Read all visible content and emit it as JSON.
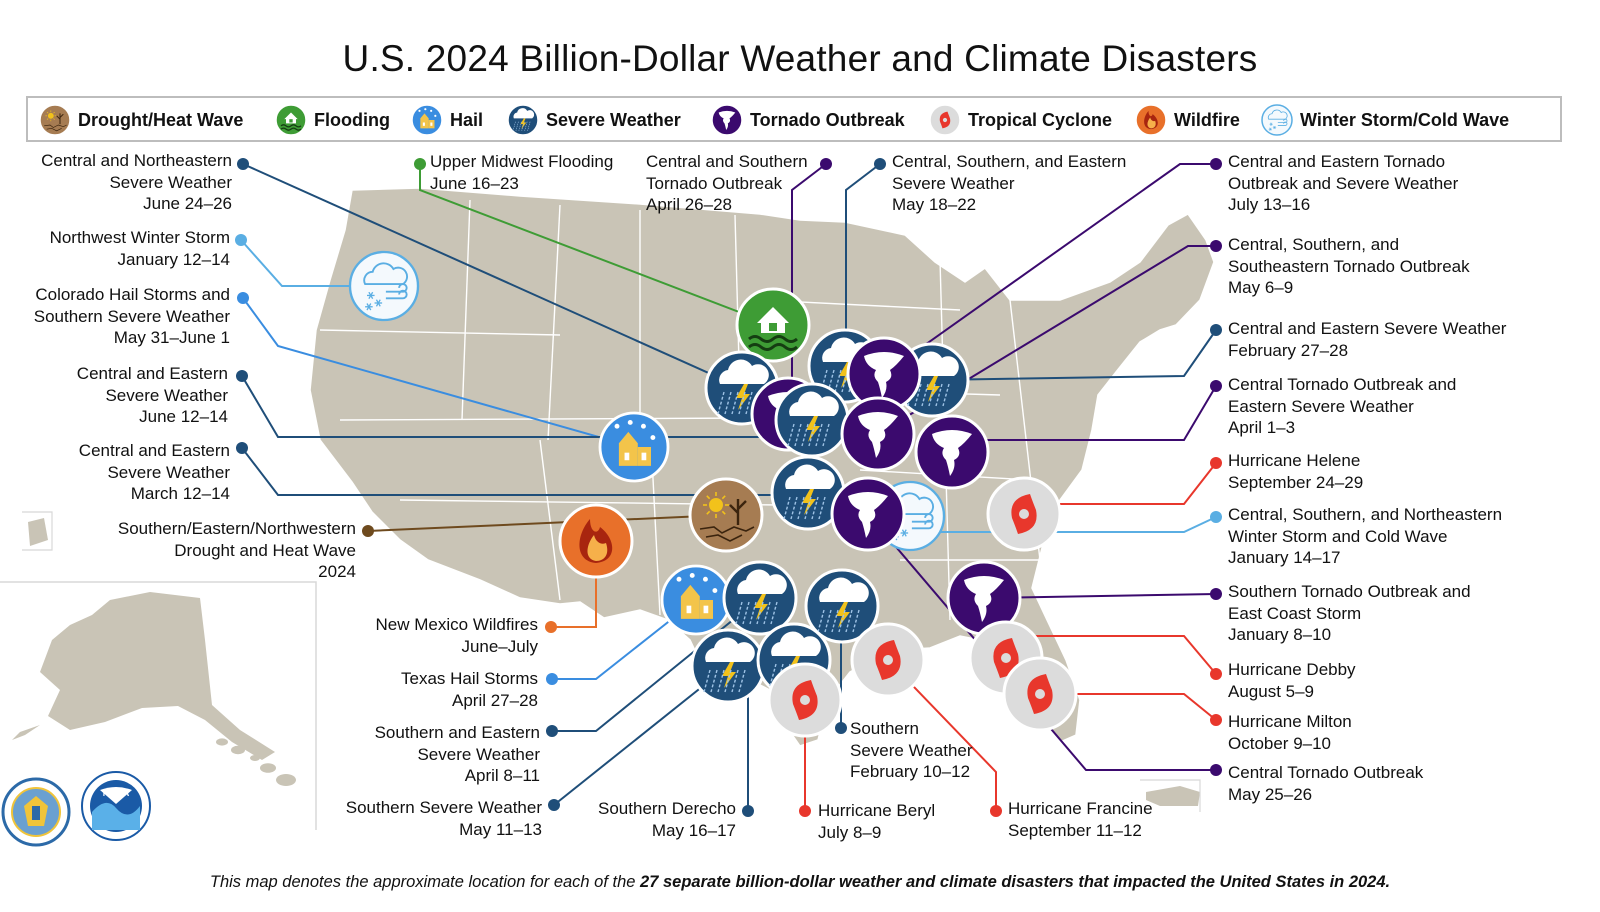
{
  "title": "U.S. 2024 Billion-Dollar Weather and Climate Disasters",
  "legend": [
    {
      "type": "drought",
      "label": "Drought/Heat Wave"
    },
    {
      "type": "flood",
      "label": "Flooding"
    },
    {
      "type": "hail",
      "label": "Hail"
    },
    {
      "type": "severe",
      "label": "Severe Weather"
    },
    {
      "type": "tornado",
      "label": "Tornado Outbreak"
    },
    {
      "type": "tropical",
      "label": "Tropical Cyclone"
    },
    {
      "type": "wildfire",
      "label": "Wildfire"
    },
    {
      "type": "winter",
      "label": "Winter Storm/Cold Wave"
    }
  ],
  "colors": {
    "severe": "#1f4e79",
    "tornado": "#3b0a6e",
    "tropical": "#e8372c",
    "flood": "#3e9c35",
    "hail": "#3a8de0",
    "winter": "#5aaee3",
    "wildfire": "#e8702a",
    "drought": "#6e4a1e",
    "land": "#c9c4b6"
  },
  "events": [
    {
      "id": "e1",
      "type": "severe",
      "lines": [
        "Central and Northeastern",
        "Severe Weather",
        "June 24–26"
      ]
    },
    {
      "id": "e2",
      "type": "winter",
      "lines": [
        "Northwest Winter Storm",
        "January 12–14"
      ]
    },
    {
      "id": "e3",
      "type": "hail",
      "lines": [
        "Colorado Hail Storms and",
        "Southern Severe Weather",
        "May 31–June 1"
      ]
    },
    {
      "id": "e4",
      "type": "severe",
      "lines": [
        "Central and Eastern",
        "Severe Weather",
        "June 12–14"
      ]
    },
    {
      "id": "e5",
      "type": "severe",
      "lines": [
        "Central and Eastern",
        "Severe Weather",
        "March 12–14"
      ]
    },
    {
      "id": "e6",
      "type": "drought",
      "lines": [
        "Southern/Eastern/Northwestern",
        "Drought and Heat Wave",
        "2024"
      ]
    },
    {
      "id": "e7",
      "type": "flood",
      "lines": [
        "Upper Midwest Flooding",
        "June 16–23"
      ]
    },
    {
      "id": "e8",
      "type": "tornado",
      "lines": [
        "Central and Southern",
        "Tornado Outbreak",
        "April 26–28"
      ]
    },
    {
      "id": "e9",
      "type": "severe",
      "lines": [
        "Central, Southern, and Eastern",
        "Severe Weather",
        "May 18–22"
      ]
    },
    {
      "id": "e10",
      "type": "tornado",
      "lines": [
        "Central and Eastern Tornado",
        "Outbreak and Severe Weather",
        "July 13–16"
      ]
    },
    {
      "id": "e11",
      "type": "tornado",
      "lines": [
        "Central, Southern, and",
        "Southeastern Tornado Outbreak",
        "May 6–9"
      ]
    },
    {
      "id": "e12",
      "type": "severe",
      "lines": [
        "Central and Eastern Severe Weather",
        "February 27–28"
      ]
    },
    {
      "id": "e13",
      "type": "tornado",
      "lines": [
        "Central Tornado Outbreak and",
        "Eastern Severe Weather",
        "April 1–3"
      ]
    },
    {
      "id": "e14",
      "type": "tropical",
      "lines": [
        "Hurricane Helene",
        "September 24–29"
      ]
    },
    {
      "id": "e15",
      "type": "winter",
      "lines": [
        "Central, Southern, and Northeastern",
        "Winter Storm and Cold Wave",
        "January 14–17"
      ]
    },
    {
      "id": "e16",
      "type": "tornado",
      "lines": [
        "Southern Tornado Outbreak and",
        "East Coast Storm",
        "January 8–10"
      ]
    },
    {
      "id": "e17",
      "type": "tropical",
      "lines": [
        "Hurricane Debby",
        "August 5–9"
      ]
    },
    {
      "id": "e18",
      "type": "tropical",
      "lines": [
        "Hurricane Milton",
        "October 9–10"
      ]
    },
    {
      "id": "e19",
      "type": "tornado",
      "lines": [
        "Central Tornado Outbreak",
        "May 25–26"
      ]
    },
    {
      "id": "e20",
      "type": "wildfire",
      "lines": [
        "New Mexico Wildfires",
        "June–July"
      ]
    },
    {
      "id": "e21",
      "type": "hail",
      "lines": [
        "Texas Hail Storms",
        "April 27–28"
      ]
    },
    {
      "id": "e22",
      "type": "severe",
      "lines": [
        "Southern and Eastern",
        "Severe Weather",
        "April 8–11"
      ]
    },
    {
      "id": "e23",
      "type": "severe",
      "lines": [
        "Southern Severe Weather",
        "May 11–13"
      ]
    },
    {
      "id": "e24",
      "type": "severe",
      "lines": [
        "Southern Derecho",
        "May 16–17"
      ]
    },
    {
      "id": "e25",
      "type": "tropical",
      "lines": [
        "Hurricane Beryl",
        "July 8–9"
      ]
    },
    {
      "id": "e26",
      "type": "severe",
      "lines": [
        "Southern",
        "Severe Weather",
        "February 10–12"
      ]
    },
    {
      "id": "e27",
      "type": "tropical",
      "lines": [
        "Hurricane Francine",
        "September 11–12"
      ]
    }
  ],
  "footnote": {
    "prefix": "This map denotes the approximate location for each of the ",
    "bold": "27 separate billion-dollar weather and climate disasters that impacted the United States in 2024.",
    "suffix": ""
  },
  "logos": [
    {
      "name": "doc-seal",
      "text": "DEPARTMENT OF COMMERCE · UNITED STATES OF AMERICA"
    },
    {
      "name": "noaa-logo",
      "text": "NOAA"
    }
  ]
}
